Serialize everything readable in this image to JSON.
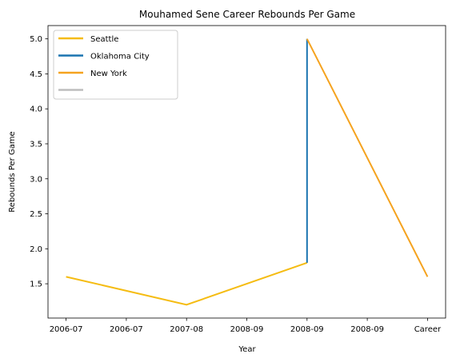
{
  "chart_data": {
    "type": "line",
    "title": "Mouhamed Sene Career Rebounds Per Game",
    "xlabel": "Year",
    "ylabel": "Rebounds Per Game",
    "x_tick_labels": [
      "2006-07",
      "2006-07",
      "2007-08",
      "2008-09",
      "2008-09",
      "2008-09",
      "Career"
    ],
    "y_ticks": [
      1.5,
      2.0,
      2.5,
      3.0,
      3.5,
      4.0,
      4.5,
      5.0
    ],
    "y_tick_labels": [
      "1.5",
      "2.0",
      "2.5",
      "3.0",
      "3.5",
      "4.0",
      "4.5",
      "5.0"
    ],
    "ylim": [
      1.01,
      5.19
    ],
    "xlim": [
      -0.3,
      6.3
    ],
    "grid": false,
    "legend_position": "top-left",
    "series": [
      {
        "name": "Seattle",
        "color": "#f5bc12",
        "points": [
          [
            0,
            1.6
          ],
          [
            2,
            1.2
          ],
          [
            4,
            1.8
          ]
        ]
      },
      {
        "name": "Oklahoma City",
        "color": "#1a74b0",
        "points": [
          [
            4,
            1.8
          ],
          [
            4,
            5.0
          ]
        ]
      },
      {
        "name": "New York",
        "color": "#f5a31f",
        "points": [
          [
            4,
            5.0
          ],
          [
            6,
            1.6
          ]
        ]
      },
      {
        "name": "",
        "color": "#bdbdbd",
        "points": []
      }
    ]
  }
}
